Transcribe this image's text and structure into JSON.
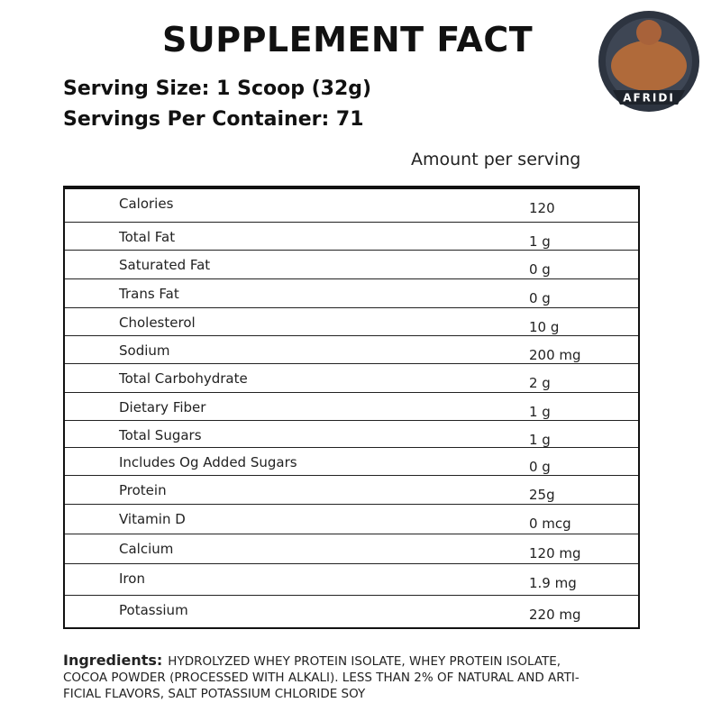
{
  "header": {
    "title": "SUPPLEMENT FACT",
    "serving_size": "Serving Size: 1 Scoop (32g)",
    "servings_per_container": "Servings Per Container: 71",
    "logo_text": "AFRIDI"
  },
  "table": {
    "column_header": "Amount per serving",
    "rows": [
      [
        "Calories",
        "120"
      ],
      [
        "Total Fat",
        "1 g"
      ],
      [
        "Saturated Fat",
        "0 g"
      ],
      [
        "Trans Fat",
        "0 g"
      ],
      [
        "Cholesterol",
        "10 g"
      ],
      [
        "Sodium",
        "200 mg"
      ],
      [
        "Total Carbohydrate",
        "2 g"
      ],
      [
        "Dietary Fiber",
        "1 g"
      ],
      [
        "Total Sugars",
        "1 g"
      ],
      [
        "Includes Og Added Sugars",
        "0 g"
      ],
      [
        "Protein",
        "25g"
      ],
      [
        "Vitamin D",
        "0 mcg"
      ],
      [
        "Calcium",
        "120 mg"
      ],
      [
        "Iron",
        "1.9 mg"
      ],
      [
        "Potassium",
        "220 mg"
      ]
    ]
  },
  "ingredients": {
    "label": "Ingredients:",
    "lines": [
      "HYDROLYZED WHEY PROTEIN ISOLATE, WHEY PROTEIN ISOLATE,",
      "COCOA POWDER (PROCESSED WITH ALKALI). LESS THAN 2% OF NATURAL AND ARTI-",
      "FICIAL FLAVORS, SALT POTASSIUM CHLORIDE SOY"
    ]
  }
}
